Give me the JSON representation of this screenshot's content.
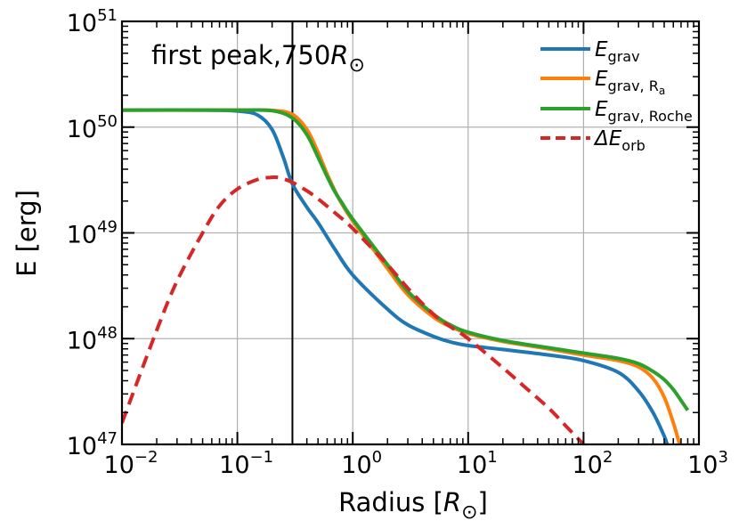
{
  "chart_data": {
    "type": "line",
    "title": "",
    "xlabel": "Radius [",
    "xlabel_unit": "R",
    "xlabel_unit_sub": "⊙",
    "xlabel_close": "]",
    "ylabel": "E [erg]",
    "xscale": "log",
    "yscale": "log",
    "xlim": [
      0.01,
      1000
    ],
    "ylim": [
      1e+47,
      1e+51
    ],
    "grid": true,
    "legend_position": "top-right",
    "x_ticks": [
      {
        "value": 0.01,
        "base": "10",
        "exp": "−2"
      },
      {
        "value": 0.1,
        "base": "10",
        "exp": "−1"
      },
      {
        "value": 1,
        "base": "10",
        "exp": "0"
      },
      {
        "value": 10,
        "base": "10",
        "exp": "1"
      },
      {
        "value": 100,
        "base": "10",
        "exp": "2"
      },
      {
        "value": 1000,
        "base": "10",
        "exp": "3"
      }
    ],
    "y_ticks": [
      {
        "value": 1e+47,
        "base": "10",
        "exp": "47"
      },
      {
        "value": 1e+48,
        "base": "10",
        "exp": "48"
      },
      {
        "value": 1e+49,
        "base": "10",
        "exp": "49"
      },
      {
        "value": 1e+50,
        "base": "10",
        "exp": "50"
      },
      {
        "value": 1e+51,
        "base": "10",
        "exp": "51"
      }
    ],
    "annotation": {
      "text": "first peak,750",
      "unit": "R",
      "unit_sub": "⊙"
    },
    "vline_x": 0.3,
    "series": [
      {
        "name": "E",
        "name_sub": "grav",
        "color": "#1f77b4",
        "dash": "solid",
        "x": [
          0.01,
          0.05,
          0.1,
          0.15,
          0.2,
          0.25,
          0.3,
          0.4,
          0.5,
          0.7,
          1,
          2,
          3,
          5,
          7,
          10,
          20,
          50,
          100,
          200,
          300,
          400,
          500,
          530
        ],
        "y": [
          1.45e+50,
          1.45e+50,
          1.42e+50,
          1.3e+50,
          9.5e+49,
          5.2e+49,
          2.9e+49,
          1.75e+49,
          1.25e+49,
          7e+48,
          4e+48,
          1.9e+48,
          1.35e+48,
          1.05e+48,
          9.3e+47,
          8.6e+47,
          7.9e+47,
          7e+47,
          6.2e+47,
          4.8e+47,
          3.2e+47,
          2e+47,
          1.2e+47,
          1e+47
        ]
      },
      {
        "name": "E",
        "name_sub": "grav, R",
        "name_subsub": "a",
        "color": "#ff7f0e",
        "dash": "solid",
        "x": [
          0.01,
          0.1,
          0.2,
          0.3,
          0.4,
          0.5,
          0.6,
          0.7,
          0.8,
          1,
          2,
          3,
          5,
          7,
          10,
          20,
          50,
          100,
          200,
          300,
          400,
          500,
          600,
          680
        ],
        "y": [
          1.45e+50,
          1.45e+50,
          1.44e+50,
          1.32e+50,
          9.5e+49,
          5.8e+49,
          3.6e+49,
          2.5e+49,
          1.9e+49,
          1.3e+49,
          4.6e+48,
          2.6e+48,
          1.6e+48,
          1.3e+48,
          1.12e+48,
          9.4e+47,
          8e+47,
          7e+47,
          6.2e+47,
          5.4e+47,
          4.2e+47,
          2.8e+47,
          1.6e+47,
          1e+47
        ]
      },
      {
        "name": "E",
        "name_sub": "grav, Roche",
        "color": "#2ca02c",
        "dash": "solid",
        "x": [
          0.01,
          0.1,
          0.2,
          0.3,
          0.4,
          0.5,
          0.6,
          0.7,
          0.8,
          1,
          2,
          3,
          5,
          7,
          10,
          20,
          50,
          100,
          200,
          300,
          400,
          500,
          600,
          700,
          800
        ],
        "y": [
          1.45e+50,
          1.45e+50,
          1.43e+50,
          1.22e+50,
          8.5e+49,
          5.2e+49,
          3.4e+49,
          2.45e+49,
          1.95e+49,
          1.35e+49,
          5e+48,
          2.8e+48,
          1.7e+48,
          1.35e+48,
          1.15e+48,
          9.6e+47,
          8.2e+47,
          7.3e+47,
          6.5e+47,
          5.8e+47,
          4.9e+47,
          4.1e+47,
          3.3e+47,
          2.6e+47,
          2.1e+47
        ]
      },
      {
        "name": "ΔE",
        "name_sub": "orb",
        "color": "#d62728",
        "dash": "dashed",
        "x": [
          0.01,
          0.02,
          0.03,
          0.05,
          0.07,
          0.1,
          0.15,
          0.2,
          0.22,
          0.25,
          0.3,
          0.4,
          0.5,
          0.7,
          1,
          2,
          3,
          5,
          7,
          10,
          20,
          30,
          50,
          70,
          100
        ],
        "y": [
          1.6e+47,
          1.2e+48,
          3.5e+48,
          1e+49,
          1.8e+49,
          2.6e+49,
          3.2e+49,
          3.35e+49,
          3.35e+49,
          3.25e+49,
          3e+49,
          2.5e+49,
          2.1e+49,
          1.55e+49,
          1.1e+49,
          5e+48,
          3e+48,
          1.7e+48,
          1.3e+48,
          1e+48,
          5.3e+47,
          3.6e+47,
          2.2e+47,
          1.5e+47,
          1e+47
        ]
      }
    ]
  }
}
